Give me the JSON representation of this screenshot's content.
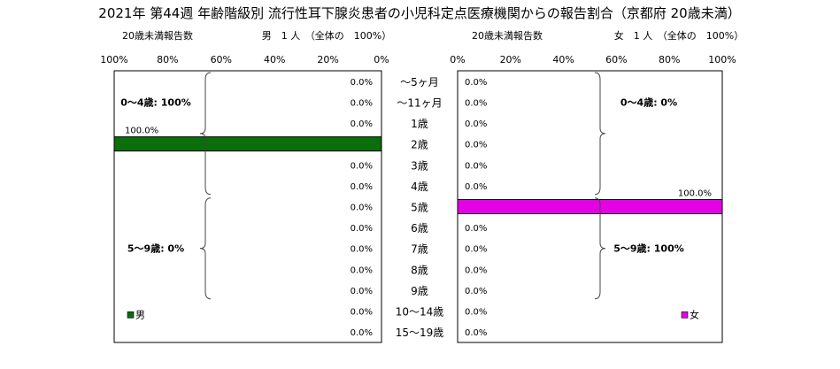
{
  "chart_data": {
    "type": "bar",
    "title": "2021年 第44週 年齢階級別 流行性耳下腺炎患者の小児科定点医療機関からの報告割合（京都府 20歳未満）",
    "categories": [
      "～5ヶ月",
      "～11ヶ月",
      "1歳",
      "2歳",
      "3歳",
      "4歳",
      "5歳",
      "6歳",
      "7歳",
      "8歳",
      "9歳",
      "10～14歳",
      "15～19歳"
    ],
    "xlim": [
      0,
      100
    ],
    "tick_labels": [
      "0%",
      "20%",
      "40%",
      "60%",
      "80%",
      "100%"
    ],
    "grid": false,
    "panels": [
      {
        "id": "male",
        "caption": "20歳未満報告数",
        "header": "男　1 人　（全体の　100%）",
        "legend": "男",
        "direction": "right-to-left",
        "color": "#0a6e0a",
        "values": [
          0.0,
          0.0,
          0.0,
          100.0,
          0.0,
          0.0,
          0.0,
          0.0,
          0.0,
          0.0,
          0.0,
          0.0,
          0.0
        ],
        "value_labels": [
          "0.0%",
          "0.0%",
          "0.0%",
          "100.0%",
          "0.0%",
          "0.0%",
          "0.0%",
          "0.0%",
          "0.0%",
          "0.0%",
          "0.0%",
          "0.0%",
          "0.0%"
        ],
        "annotations": [
          {
            "text": "0～4歳: 100%",
            "from": 0,
            "to": 5
          },
          {
            "text": "5～9歳: 0%",
            "from": 6,
            "to": 10
          }
        ]
      },
      {
        "id": "female",
        "caption": "20歳未満報告数",
        "header": "女　1 人　（全体の　100%）",
        "legend": "女",
        "direction": "left-to-right",
        "color": "#e600e6",
        "values": [
          0.0,
          0.0,
          0.0,
          0.0,
          0.0,
          0.0,
          100.0,
          0.0,
          0.0,
          0.0,
          0.0,
          0.0,
          0.0
        ],
        "value_labels": [
          "0.0%",
          "0.0%",
          "0.0%",
          "0.0%",
          "0.0%",
          "0.0%",
          "100.0%",
          "0.0%",
          "0.0%",
          "0.0%",
          "0.0%",
          "0.0%",
          "0.0%"
        ],
        "annotations": [
          {
            "text": "0～4歳: 0%",
            "from": 0,
            "to": 5
          },
          {
            "text": "5～9歳: 100%",
            "from": 6,
            "to": 10
          }
        ]
      }
    ]
  }
}
